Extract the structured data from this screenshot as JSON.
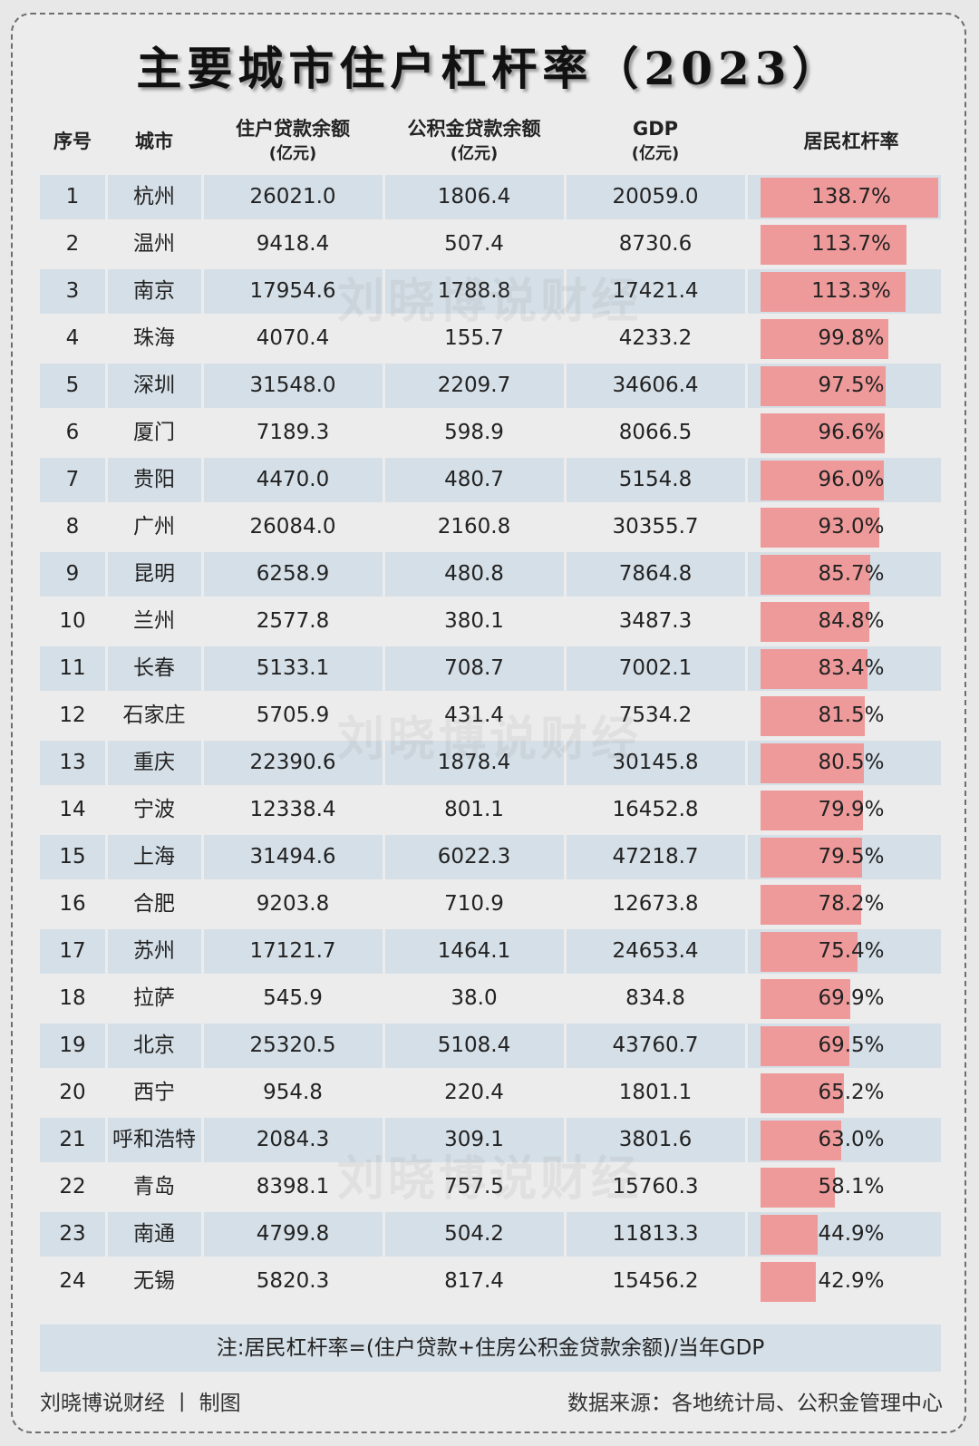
{
  "title": "主要城市住户杠杆率（2023）",
  "headers": {
    "index": "序号",
    "city": "城市",
    "household_loans": [
      "住户贷款余额",
      "(亿元)"
    ],
    "fund_loans": [
      "公积金贷款余额",
      "(亿元)"
    ],
    "gdp": [
      "GDP",
      "(亿元)"
    ],
    "leverage": "居民杠杆率"
  },
  "watermark": "刘晓博说财经",
  "chart_data": {
    "type": "table",
    "title": "主要城市住户杠杆率（2023）",
    "columns": [
      "序号",
      "城市",
      "住户贷款余额(亿元)",
      "公积金贷款余额(亿元)",
      "GDP(亿元)",
      "居民杠杆率"
    ],
    "rows": [
      {
        "rank": "1",
        "city": "杭州",
        "loans": "26021.0",
        "fund": "1806.4",
        "gdp": "20059.0",
        "lev": "138.7%",
        "value": 138.7
      },
      {
        "rank": "2",
        "city": "温州",
        "loans": "9418.4",
        "fund": "507.4",
        "gdp": "8730.6",
        "lev": "113.7%",
        "value": 113.7
      },
      {
        "rank": "3",
        "city": "南京",
        "loans": "17954.6",
        "fund": "1788.8",
        "gdp": "17421.4",
        "lev": "113.3%",
        "value": 113.3
      },
      {
        "rank": "4",
        "city": "珠海",
        "loans": "4070.4",
        "fund": "155.7",
        "gdp": "4233.2",
        "lev": "99.8%",
        "value": 99.8
      },
      {
        "rank": "5",
        "city": "深圳",
        "loans": "31548.0",
        "fund": "2209.7",
        "gdp": "34606.4",
        "lev": "97.5%",
        "value": 97.5
      },
      {
        "rank": "6",
        "city": "厦门",
        "loans": "7189.3",
        "fund": "598.9",
        "gdp": "8066.5",
        "lev": "96.6%",
        "value": 96.6
      },
      {
        "rank": "7",
        "city": "贵阳",
        "loans": "4470.0",
        "fund": "480.7",
        "gdp": "5154.8",
        "lev": "96.0%",
        "value": 96.0
      },
      {
        "rank": "8",
        "city": "广州",
        "loans": "26084.0",
        "fund": "2160.8",
        "gdp": "30355.7",
        "lev": "93.0%",
        "value": 93.0
      },
      {
        "rank": "9",
        "city": "昆明",
        "loans": "6258.9",
        "fund": "480.8",
        "gdp": "7864.8",
        "lev": "85.7%",
        "value": 85.7
      },
      {
        "rank": "10",
        "city": "兰州",
        "loans": "2577.8",
        "fund": "380.1",
        "gdp": "3487.3",
        "lev": "84.8%",
        "value": 84.8
      },
      {
        "rank": "11",
        "city": "长春",
        "loans": "5133.1",
        "fund": "708.7",
        "gdp": "7002.1",
        "lev": "83.4%",
        "value": 83.4
      },
      {
        "rank": "12",
        "city": "石家庄",
        "loans": "5705.9",
        "fund": "431.4",
        "gdp": "7534.2",
        "lev": "81.5%",
        "value": 81.5
      },
      {
        "rank": "13",
        "city": "重庆",
        "loans": "22390.6",
        "fund": "1878.4",
        "gdp": "30145.8",
        "lev": "80.5%",
        "value": 80.5
      },
      {
        "rank": "14",
        "city": "宁波",
        "loans": "12338.4",
        "fund": "801.1",
        "gdp": "16452.8",
        "lev": "79.9%",
        "value": 79.9
      },
      {
        "rank": "15",
        "city": "上海",
        "loans": "31494.6",
        "fund": "6022.3",
        "gdp": "47218.7",
        "lev": "79.5%",
        "value": 79.5
      },
      {
        "rank": "16",
        "city": "合肥",
        "loans": "9203.8",
        "fund": "710.9",
        "gdp": "12673.8",
        "lev": "78.2%",
        "value": 78.2
      },
      {
        "rank": "17",
        "city": "苏州",
        "loans": "17121.7",
        "fund": "1464.1",
        "gdp": "24653.4",
        "lev": "75.4%",
        "value": 75.4
      },
      {
        "rank": "18",
        "city": "拉萨",
        "loans": "545.9",
        "fund": "38.0",
        "gdp": "834.8",
        "lev": "69.9%",
        "value": 69.9
      },
      {
        "rank": "19",
        "city": "北京",
        "loans": "25320.5",
        "fund": "5108.4",
        "gdp": "43760.7",
        "lev": "69.5%",
        "value": 69.5
      },
      {
        "rank": "20",
        "city": "西宁",
        "loans": "954.8",
        "fund": "220.4",
        "gdp": "1801.1",
        "lev": "65.2%",
        "value": 65.2
      },
      {
        "rank": "21",
        "city": "呼和浩特",
        "loans": "2084.3",
        "fund": "309.1",
        "gdp": "3801.6",
        "lev": "63.0%",
        "value": 63.0
      },
      {
        "rank": "22",
        "city": "青岛",
        "loans": "8398.1",
        "fund": "757.5",
        "gdp": "15760.3",
        "lev": "58.1%",
        "value": 58.1
      },
      {
        "rank": "23",
        "city": "南通",
        "loans": "4799.8",
        "fund": "504.2",
        "gdp": "11813.3",
        "lev": "44.9%",
        "value": 44.9
      },
      {
        "rank": "24",
        "city": "无锡",
        "loans": "5820.3",
        "fund": "817.4",
        "gdp": "15456.2",
        "lev": "42.9%",
        "value": 42.9
      }
    ],
    "bar_color": "#ef9a9a",
    "band_color": "#d5dfe7"
  },
  "note": "注:居民杠杆率=(住户贷款+住房公积金贷款余额)/当年GDP",
  "footer": {
    "left": "刘晓博说财经 丨 制图",
    "right": "数据来源：各地统计局、公积金管理中心"
  }
}
